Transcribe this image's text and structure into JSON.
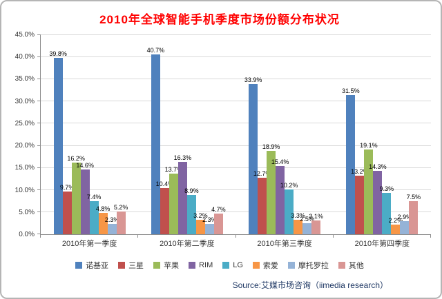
{
  "header": {
    "title": "2010年全球智能手机季度市场份额分布状况"
  },
  "footer": {
    "source": "Source:艾媒市场咨询（iimedia research）"
  },
  "chart_data": {
    "type": "bar",
    "title": "2010年全球智能手机季度市场份额分布状况",
    "categories": [
      "2010年第一季度",
      "2010年第二季度",
      "2010年第三季度",
      "2010年第四季度"
    ],
    "series": [
      {
        "name": "诺基亚",
        "color": "#4F81BD",
        "values": [
          39.8,
          40.7,
          33.9,
          31.5
        ]
      },
      {
        "name": "三星",
        "color": "#C0504D",
        "values": [
          9.7,
          10.4,
          12.7,
          13.2
        ]
      },
      {
        "name": "苹果",
        "color": "#9BBB59",
        "values": [
          16.2,
          13.7,
          18.9,
          19.1
        ]
      },
      {
        "name": "RIM",
        "color": "#8064A2",
        "values": [
          14.6,
          16.3,
          15.4,
          14.3
        ]
      },
      {
        "name": "LG",
        "color": "#4BACC6",
        "values": [
          7.4,
          8.9,
          10.2,
          9.3
        ]
      },
      {
        "name": "索爱",
        "color": "#F79646",
        "values": [
          4.8,
          3.2,
          3.3,
          2.2
        ]
      },
      {
        "name": "摩托罗拉",
        "color": "#95B3D7",
        "values": [
          2.3,
          2.3,
          2.5,
          2.9
        ]
      },
      {
        "name": "其他",
        "color": "#D99694",
        "values": [
          5.2,
          4.7,
          3.1,
          7.5
        ]
      }
    ],
    "xlabel": "",
    "ylabel": "",
    "ylim": [
      0,
      45
    ],
    "ytick_step": 5,
    "ytick_labels": [
      "0.0%",
      "5.0%",
      "10.0%",
      "15.0%",
      "20.0%",
      "25.0%",
      "30.0%",
      "35.0%",
      "40.0%",
      "45.0%"
    ],
    "value_label_format": "one-decimal-percent",
    "grid": true,
    "legend_position": "bottom"
  }
}
